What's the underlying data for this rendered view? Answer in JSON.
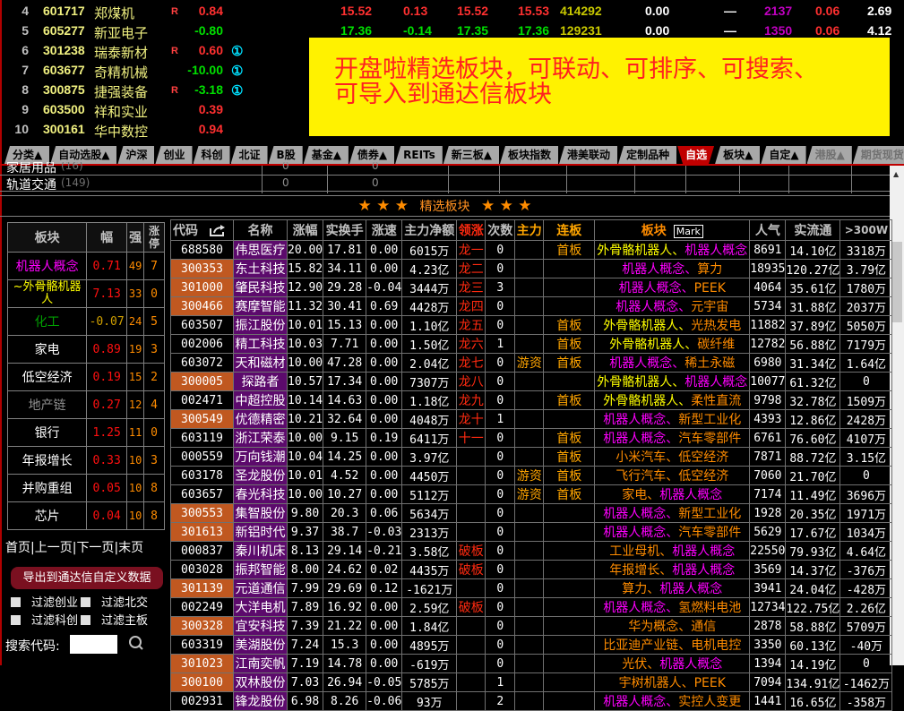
{
  "colors": {
    "up": "#ff3030",
    "down": "#00e000",
    "vol": "#c8c800",
    "white": "#ffffff",
    "pop": "#c000c0",
    "y": "#ffff00",
    "m": "#ff00ff",
    "o": "#ff8c00",
    "g": "#00a000",
    "gray": "#909090",
    "r": "#ff1010",
    "orange": "#ff8c00"
  },
  "top_rows": [
    {
      "idx": "4",
      "code": "601717",
      "name": "郑煤机",
      "flag": "R",
      "pct": "0.84",
      "dir": "up",
      "badge": "",
      "cols": [
        [
          "15.52",
          "up"
        ],
        [
          "0.13",
          "up"
        ],
        [
          "15.52",
          "up"
        ],
        [
          "15.53",
          "up"
        ],
        [
          "414292",
          "vol"
        ],
        [
          "0.00",
          "white"
        ],
        [
          "—",
          "white"
        ],
        [
          "2137",
          "pop"
        ],
        [
          "0.06",
          "up"
        ],
        [
          "2.69",
          "white"
        ]
      ]
    },
    {
      "idx": "5",
      "code": "605277",
      "name": "新亚电子",
      "flag": "",
      "pct": "-0.80",
      "dir": "down",
      "badge": "",
      "cols": [
        [
          "17.36",
          "down"
        ],
        [
          "-0.14",
          "down"
        ],
        [
          "17.35",
          "down"
        ],
        [
          "17.36",
          "down"
        ],
        [
          "129231",
          "vol"
        ],
        [
          "0.00",
          "white"
        ],
        [
          "—",
          "white"
        ],
        [
          "1350",
          "pop"
        ],
        [
          "0.06",
          "up"
        ],
        [
          "4.12",
          "white"
        ]
      ]
    },
    {
      "idx": "6",
      "code": "301238",
      "name": "瑞泰新材",
      "flag": "R",
      "pct": "0.60",
      "dir": "up",
      "badge": "①",
      "cols": []
    },
    {
      "idx": "7",
      "code": "603677",
      "name": "奇精机械",
      "flag": "",
      "pct": "-10.00",
      "dir": "down",
      "badge": "①",
      "cols": []
    },
    {
      "idx": "8",
      "code": "300875",
      "name": "捷强装备",
      "flag": "R",
      "pct": "-3.18",
      "dir": "down",
      "badge": "①",
      "cols": []
    },
    {
      "idx": "9",
      "code": "603500",
      "name": "祥和实业",
      "flag": "",
      "pct": "0.39",
      "dir": "up",
      "badge": "",
      "cols": []
    },
    {
      "idx": "10",
      "code": "300161",
      "name": "华中数控",
      "flag": "",
      "pct": "0.94",
      "dir": "up",
      "badge": "",
      "cols": []
    }
  ],
  "banner": {
    "line1": "开盘啦精选板块，可联动、可排序、可搜索、",
    "line2": "可导入到通达信板块"
  },
  "tabs": [
    {
      "label": "分类▲"
    },
    {
      "label": "自动选股▲"
    },
    {
      "label": "沪深"
    },
    {
      "label": "创业"
    },
    {
      "label": "科创"
    },
    {
      "label": "北证"
    },
    {
      "label": "B股"
    },
    {
      "label": "基金▲"
    },
    {
      "label": "债券▲"
    },
    {
      "label": "REITs"
    },
    {
      "label": "新三板▲"
    },
    {
      "label": "板块指数"
    },
    {
      "label": "港美联动"
    },
    {
      "label": "定制品种"
    },
    {
      "label": "自选",
      "active": true
    },
    {
      "label": "板块▲"
    },
    {
      "label": "自定▲"
    },
    {
      "label": "港股▲",
      "dim": true
    },
    {
      "label": "期货现货",
      "dim": true
    }
  ],
  "sub_rows": [
    {
      "name": "家居用品",
      "count": "(16)",
      "v1": "0",
      "v2": "0"
    },
    {
      "name": "轨道交通",
      "count": "(149)",
      "v1": "0",
      "v2": "0"
    }
  ],
  "section": {
    "title": "精选板块",
    "stars": "★ ★ ★"
  },
  "left_panel": {
    "headers": {
      "sector": "板块",
      "pct": "幅",
      "strength": "强",
      "limit_up": "涨停"
    },
    "rows": [
      {
        "name": "机器人概念",
        "color": "m",
        "pct": "0.71",
        "strength": "49",
        "limit_up": "7"
      },
      {
        "name": "~外骨骼机器人",
        "color": "y",
        "pct": "7.13",
        "strength": "33",
        "limit_up": "0"
      },
      {
        "name": "化工",
        "color": "g",
        "pct": "-0.07",
        "strength": "24",
        "limit_up": "5"
      },
      {
        "name": "家电",
        "color": "white",
        "pct": "0.89",
        "strength": "19",
        "limit_up": "3"
      },
      {
        "name": "低空经济",
        "color": "white",
        "pct": "0.19",
        "strength": "15",
        "limit_up": "2"
      },
      {
        "name": "地产链",
        "color": "gray",
        "pct": "0.27",
        "strength": "12",
        "limit_up": "4"
      },
      {
        "name": "银行",
        "color": "white",
        "pct": "1.25",
        "strength": "11",
        "limit_up": "0"
      },
      {
        "name": "年报增长",
        "color": "white",
        "pct": "0.33",
        "strength": "10",
        "limit_up": "3"
      },
      {
        "name": "并购重组",
        "color": "white",
        "pct": "0.05",
        "strength": "10",
        "limit_up": "8"
      },
      {
        "name": "芯片",
        "color": "white",
        "pct": "0.04",
        "strength": "10",
        "limit_up": "8"
      }
    ],
    "pager": {
      "first": "首页",
      "prev": "上一页",
      "next": "下一页",
      "last": "末页",
      "sep": "|"
    },
    "export_button": "导出到通达信自定义数据",
    "filters": [
      {
        "label": "过滤创业"
      },
      {
        "label": "过滤北交"
      },
      {
        "label": "过滤科创"
      },
      {
        "label": "过滤主板"
      }
    ],
    "search_label": "搜索代码:",
    "search_value": ""
  },
  "main_table": {
    "headers": {
      "code": "代码",
      "name": "名称",
      "pct": "涨幅",
      "turnover": "实换手",
      "speed": "涨速",
      "net": "主力净额",
      "lead": "领涨",
      "count": "次数",
      "main": "主力",
      "board": "连板",
      "sector": "板块",
      "mark": "Mark",
      "pop": "人气",
      "float": "实流通",
      "over300w": ">300W"
    },
    "rows": [
      {
        "code": "688580",
        "name": "伟思医疗",
        "pct": "20.00",
        "turnover": "17.81",
        "speed": "0.00",
        "net": "6015万",
        "lead": "龙一",
        "count": "0",
        "main": "",
        "board": "首板",
        "sector": [
          {
            "t": "外骨骼机器人、",
            "c": "y"
          },
          {
            "t": "机器人概念",
            "c": "m"
          }
        ],
        "pop": "8691",
        "float": "14.10亿",
        "over300w": "3318万"
      },
      {
        "code": "300353",
        "name": "东土科技",
        "pct": "15.82",
        "turnover": "34.11",
        "speed": "0.00",
        "net": "4.23亿",
        "lead": "龙二",
        "count": "0",
        "main": "",
        "board": "",
        "sector": [
          {
            "t": "机器人概念、",
            "c": "m"
          },
          {
            "t": "算力",
            "c": "o"
          }
        ],
        "pop": "18935",
        "float": "120.27亿",
        "over300w": "3.79亿"
      },
      {
        "code": "301000",
        "name": "肇民科技",
        "pct": "12.90",
        "turnover": "29.28",
        "speed": "-0.04",
        "net": "3444万",
        "lead": "龙三",
        "count": "3",
        "main": "",
        "board": "",
        "sector": [
          {
            "t": "机器人概念、",
            "c": "m"
          },
          {
            "t": "PEEK",
            "c": "o"
          }
        ],
        "pop": "4064",
        "float": "35.61亿",
        "over300w": "1780万"
      },
      {
        "code": "300466",
        "name": "赛摩智能",
        "pct": "11.32",
        "turnover": "30.41",
        "speed": "0.69",
        "net": "4428万",
        "lead": "龙四",
        "count": "0",
        "main": "",
        "board": "",
        "sector": [
          {
            "t": "机器人概念、",
            "c": "m"
          },
          {
            "t": "元宇宙",
            "c": "o"
          }
        ],
        "pop": "5734",
        "float": "31.88亿",
        "over300w": "2037万"
      },
      {
        "code": "603507",
        "name": "振江股份",
        "pct": "10.01",
        "turnover": "15.13",
        "speed": "0.00",
        "net": "1.10亿",
        "lead": "龙五",
        "count": "0",
        "main": "",
        "board": "首板",
        "sector": [
          {
            "t": "外骨骼机器人、",
            "c": "y"
          },
          {
            "t": "光热发电",
            "c": "o"
          }
        ],
        "pop": "11882",
        "float": "37.89亿",
        "over300w": "5050万"
      },
      {
        "code": "002006",
        "name": "精工科技",
        "pct": "10.03",
        "turnover": "7.71",
        "speed": "0.00",
        "net": "1.50亿",
        "lead": "龙六",
        "count": "1",
        "main": "",
        "board": "首板",
        "sector": [
          {
            "t": "外骨骼机器人、",
            "c": "y"
          },
          {
            "t": "碳纤维",
            "c": "o"
          }
        ],
        "pop": "12782",
        "float": "56.88亿",
        "over300w": "7179万"
      },
      {
        "code": "603072",
        "name": "天和磁材",
        "pct": "10.00",
        "turnover": "47.28",
        "speed": "0.00",
        "net": "2.04亿",
        "lead": "龙七",
        "count": "0",
        "main": "游资",
        "board": "首板",
        "sector": [
          {
            "t": "机器人概念、",
            "c": "m"
          },
          {
            "t": "稀土永磁",
            "c": "o"
          }
        ],
        "pop": "6980",
        "float": "31.34亿",
        "over300w": "1.64亿"
      },
      {
        "code": "300005",
        "name": "探路者",
        "pct": "10.57",
        "turnover": "17.34",
        "speed": "0.00",
        "net": "7307万",
        "lead": "龙八",
        "count": "0",
        "main": "",
        "board": "",
        "sector": [
          {
            "t": "外骨骼机器人、",
            "c": "y"
          },
          {
            "t": "机器人概念",
            "c": "m"
          }
        ],
        "pop": "10077",
        "float": "61.32亿",
        "over300w": "0"
      },
      {
        "code": "002471",
        "name": "中超控股",
        "pct": "10.14",
        "turnover": "14.63",
        "speed": "0.00",
        "net": "1.18亿",
        "lead": "龙九",
        "count": "0",
        "main": "",
        "board": "首板",
        "sector": [
          {
            "t": "外骨骼机器人、",
            "c": "y"
          },
          {
            "t": "柔性直流",
            "c": "o"
          }
        ],
        "pop": "9798",
        "float": "32.78亿",
        "over300w": "1509万"
      },
      {
        "code": "300549",
        "name": "优德精密",
        "pct": "10.21",
        "turnover": "32.64",
        "speed": "0.00",
        "net": "4048万",
        "lead": "龙十",
        "count": "1",
        "main": "",
        "board": "",
        "sector": [
          {
            "t": "机器人概念、",
            "c": "m"
          },
          {
            "t": "新型工业化",
            "c": "o"
          }
        ],
        "pop": "4393",
        "float": "12.86亿",
        "over300w": "2428万"
      },
      {
        "code": "603119",
        "name": "浙江荣泰",
        "pct": "10.00",
        "turnover": "9.15",
        "speed": "0.19",
        "net": "6411万",
        "lead": "十一",
        "count": "0",
        "main": "",
        "board": "首板",
        "sector": [
          {
            "t": "机器人概念、",
            "c": "m"
          },
          {
            "t": "汽车零部件",
            "c": "o"
          }
        ],
        "pop": "6761",
        "float": "76.60亿",
        "over300w": "4107万"
      },
      {
        "code": "000559",
        "name": "万向钱潮",
        "pct": "10.04",
        "turnover": "14.25",
        "speed": "0.00",
        "net": "3.97亿",
        "lead": "",
        "count": "0",
        "main": "",
        "board": "首板",
        "sector": [
          {
            "t": "小米汽车、",
            "c": "o"
          },
          {
            "t": "低空经济",
            "c": "o"
          }
        ],
        "pop": "7871",
        "float": "88.72亿",
        "over300w": "3.15亿"
      },
      {
        "code": "603178",
        "name": "圣龙股份",
        "pct": "10.01",
        "turnover": "4.52",
        "speed": "0.00",
        "net": "4450万",
        "lead": "",
        "count": "0",
        "main": "游资",
        "board": "首板",
        "sector": [
          {
            "t": "飞行汽车、",
            "c": "o"
          },
          {
            "t": "低空经济",
            "c": "o"
          }
        ],
        "pop": "7060",
        "float": "21.70亿",
        "over300w": "0"
      },
      {
        "code": "603657",
        "name": "春光科技",
        "pct": "10.00",
        "turnover": "10.27",
        "speed": "0.00",
        "net": "5112万",
        "lead": "",
        "count": "0",
        "main": "游资",
        "board": "首板",
        "sector": [
          {
            "t": "家电、",
            "c": "o"
          },
          {
            "t": "机器人概念",
            "c": "m"
          }
        ],
        "pop": "7174",
        "float": "11.49亿",
        "over300w": "3696万"
      },
      {
        "code": "300553",
        "name": "集智股份",
        "pct": "9.80",
        "turnover": "20.3",
        "speed": "0.06",
        "net": "5634万",
        "lead": "",
        "count": "0",
        "main": "",
        "board": "",
        "sector": [
          {
            "t": "机器人概念、",
            "c": "m"
          },
          {
            "t": "新型工业化",
            "c": "o"
          }
        ],
        "pop": "1928",
        "float": "20.35亿",
        "over300w": "1971万"
      },
      {
        "code": "301613",
        "name": "新铝时代",
        "pct": "9.37",
        "turnover": "38.7",
        "speed": "-0.03",
        "net": "2313万",
        "lead": "",
        "count": "0",
        "main": "",
        "board": "",
        "sector": [
          {
            "t": "机器人概念、",
            "c": "m"
          },
          {
            "t": "汽车零部件",
            "c": "o"
          }
        ],
        "pop": "5629",
        "float": "17.67亿",
        "over300w": "1034万"
      },
      {
        "code": "000837",
        "name": "秦川机床",
        "pct": "8.13",
        "turnover": "29.14",
        "speed": "-0.21",
        "net": "3.58亿",
        "lead": "破板",
        "count": "0",
        "main": "",
        "board": "",
        "sector": [
          {
            "t": "工业母机、",
            "c": "o"
          },
          {
            "t": "机器人概念",
            "c": "m"
          }
        ],
        "pop": "22550",
        "float": "79.93亿",
        "over300w": "4.64亿"
      },
      {
        "code": "003028",
        "name": "振邦智能",
        "pct": "8.00",
        "turnover": "24.62",
        "speed": "0.02",
        "net": "4435万",
        "lead": "破板",
        "count": "0",
        "main": "",
        "board": "",
        "sector": [
          {
            "t": "年报增长、",
            "c": "o"
          },
          {
            "t": "机器人概念",
            "c": "m"
          }
        ],
        "pop": "3569",
        "float": "14.37亿",
        "over300w": "-376万"
      },
      {
        "code": "301139",
        "name": "元道通信",
        "pct": "7.99",
        "turnover": "29.69",
        "speed": "0.12",
        "net": "-1621万",
        "lead": "",
        "count": "0",
        "main": "",
        "board": "",
        "sector": [
          {
            "t": "算力、",
            "c": "o"
          },
          {
            "t": "机器人概念",
            "c": "m"
          }
        ],
        "pop": "3941",
        "float": "24.04亿",
        "over300w": "-428万"
      },
      {
        "code": "002249",
        "name": "大洋电机",
        "pct": "7.89",
        "turnover": "16.92",
        "speed": "0.00",
        "net": "2.59亿",
        "lead": "破板",
        "count": "0",
        "main": "",
        "board": "",
        "sector": [
          {
            "t": "机器人概念、",
            "c": "m"
          },
          {
            "t": "氢燃料电池",
            "c": "o"
          }
        ],
        "pop": "12734",
        "float": "122.75亿",
        "over300w": "2.26亿"
      },
      {
        "code": "300328",
        "name": "宜安科技",
        "pct": "7.39",
        "turnover": "21.22",
        "speed": "0.00",
        "net": "1.84亿",
        "lead": "",
        "count": "0",
        "main": "",
        "board": "",
        "sector": [
          {
            "t": "华为概念、",
            "c": "o"
          },
          {
            "t": "通信",
            "c": "o"
          }
        ],
        "pop": "2878",
        "float": "58.88亿",
        "over300w": "5709万"
      },
      {
        "code": "603319",
        "name": "美湖股份",
        "pct": "7.24",
        "turnover": "15.3",
        "speed": "0.00",
        "net": "4895万",
        "lead": "",
        "count": "0",
        "main": "",
        "board": "",
        "sector": [
          {
            "t": "比亚迪产业链、",
            "c": "o"
          },
          {
            "t": "电机电控",
            "c": "o"
          }
        ],
        "pop": "3350",
        "float": "60.13亿",
        "over300w": "-40万"
      },
      {
        "code": "301023",
        "name": "江南奕帆",
        "pct": "7.19",
        "turnover": "14.78",
        "speed": "0.00",
        "net": "-619万",
        "lead": "",
        "count": "0",
        "main": "",
        "board": "",
        "sector": [
          {
            "t": "光伏、",
            "c": "o"
          },
          {
            "t": "机器人概念",
            "c": "m"
          }
        ],
        "pop": "1394",
        "float": "14.19亿",
        "over300w": "0"
      },
      {
        "code": "300100",
        "name": "双林股份",
        "pct": "7.03",
        "turnover": "26.94",
        "speed": "-0.05",
        "net": "5785万",
        "lead": "",
        "count": "1",
        "main": "",
        "board": "",
        "sector": [
          {
            "t": "宇树机器人、",
            "c": "o"
          },
          {
            "t": "PEEK",
            "c": "o"
          }
        ],
        "pop": "7094",
        "float": "134.91亿",
        "over300w": "-1462万"
      },
      {
        "code": "002931",
        "name": "锋龙股份",
        "pct": "6.98",
        "turnover": "8.26",
        "speed": "-0.06",
        "net": "93万",
        "lead": "",
        "count": "2",
        "main": "",
        "board": "",
        "sector": [
          {
            "t": "机器人概念、",
            "c": "m"
          },
          {
            "t": "实控人变更",
            "c": "o"
          }
        ],
        "pop": "1441",
        "float": "16.65亿",
        "over300w": "-358万"
      }
    ]
  }
}
